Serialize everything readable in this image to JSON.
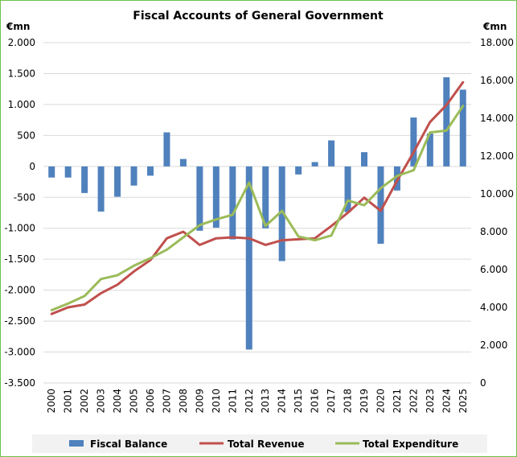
{
  "chart_data": {
    "type": "bar-line-combo",
    "title": "Fiscal Accounts of General Government",
    "left_axis_label": "€mn",
    "right_axis_label": "€mn",
    "categories": [
      "2000",
      "2001",
      "2002",
      "2003",
      "2004",
      "2005",
      "2006",
      "2007",
      "2008",
      "2009",
      "2010",
      "2011",
      "2012",
      "2013",
      "2014",
      "2015",
      "2016",
      "2017",
      "2018",
      "2019",
      "2020",
      "2021",
      "2022",
      "2023",
      "2024",
      "2025"
    ],
    "left_ylim": [
      -3500,
      2000
    ],
    "left_ticks": [
      2000,
      1500,
      1000,
      500,
      0,
      -500,
      -1000,
      -1500,
      -2000,
      -2500,
      -3000,
      -3500
    ],
    "left_tick_labels": [
      "2.000",
      "1.500",
      "1.000",
      "500",
      "0",
      "-500",
      "-1.000",
      "-1.500",
      "-2.000",
      "-2.500",
      "-3.000",
      "-3.500"
    ],
    "right_ylim": [
      0,
      18000
    ],
    "right_ticks": [
      18000,
      16000,
      14000,
      12000,
      10000,
      8000,
      6000,
      4000,
      2000,
      0
    ],
    "right_tick_labels": [
      "18.000",
      "16.000",
      "14.000",
      "12.000",
      "10.000",
      "8.000",
      "6.000",
      "4.000",
      "2.000",
      "0"
    ],
    "grid": "horizontal",
    "legend_position": "bottom",
    "series": [
      {
        "name": "Fiscal Balance",
        "type": "bar",
        "axis": "left",
        "color": "#4f81bd",
        "values": [
          -180,
          -180,
          -430,
          -730,
          -490,
          -310,
          -150,
          550,
          120,
          -1040,
          -990,
          -1180,
          -2960,
          -1000,
          -1530,
          -130,
          70,
          420,
          -740,
          230,
          -1250,
          -390,
          790,
          530,
          1440,
          1240
        ]
      },
      {
        "name": "Total Revenue",
        "type": "line",
        "axis": "right",
        "color": "#c0504d",
        "values": [
          3650,
          4000,
          4150,
          4750,
          5200,
          5900,
          6500,
          7650,
          8000,
          7300,
          7650,
          7700,
          7650,
          7300,
          7550,
          7600,
          7650,
          8300,
          9000,
          9800,
          9100,
          10700,
          12200,
          13800,
          14700,
          15900
        ]
      },
      {
        "name": "Total Expenditure",
        "type": "line",
        "axis": "right",
        "color": "#9bbb59",
        "values": [
          3850,
          4200,
          4600,
          5500,
          5700,
          6200,
          6600,
          7050,
          7700,
          8350,
          8650,
          8900,
          10600,
          8300,
          9100,
          7750,
          7550,
          7800,
          9650,
          9400,
          10300,
          10950,
          11250,
          13250,
          13350,
          14650
        ]
      }
    ]
  }
}
